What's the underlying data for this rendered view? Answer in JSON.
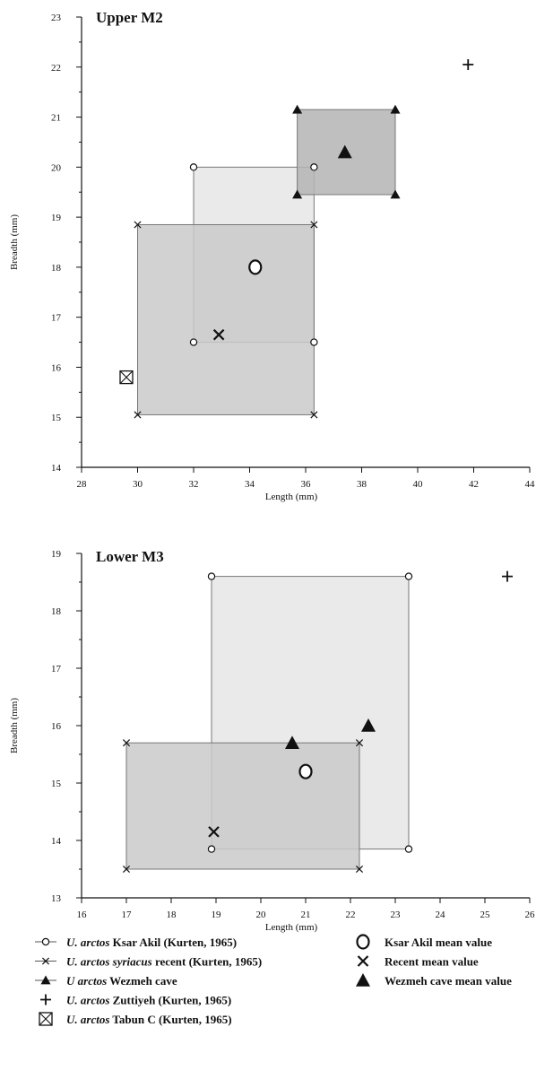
{
  "chart_data": [
    {
      "type": "scatter",
      "title": "Upper M2",
      "xlabel": "Length (mm)",
      "ylabel": "Breadth (mm)",
      "xlim": [
        28,
        44
      ],
      "ylim": [
        14,
        23
      ],
      "xticks": [
        "28",
        "30",
        "32",
        "34",
        "36",
        "38",
        "40",
        "42",
        "44"
      ],
      "yticks": [
        "14",
        "15",
        "16",
        "17",
        "18",
        "19",
        "20",
        "21",
        "22",
        "23"
      ],
      "ranges": [
        {
          "series": "ksar",
          "x": [
            32.0,
            36.3
          ],
          "y": [
            16.5,
            20.0
          ],
          "fill": "#e6e6e6"
        },
        {
          "series": "recent",
          "x": [
            30.0,
            36.3
          ],
          "y": [
            15.05,
            18.85
          ],
          "fill": "#cacaca"
        },
        {
          "series": "wezmeh",
          "x": [
            35.7,
            39.2
          ],
          "y": [
            19.45,
            21.15
          ],
          "fill": "#b4b4b4"
        }
      ],
      "points": [
        {
          "series": "ksar_mean",
          "x": 34.2,
          "y": 18.0
        },
        {
          "series": "recent_mean",
          "x": 32.9,
          "y": 16.65
        },
        {
          "series": "wezmeh_mean",
          "x": 37.4,
          "y": 20.3
        },
        {
          "series": "zuttiyeh",
          "x": 41.8,
          "y": 22.05
        },
        {
          "series": "tabun",
          "x": 29.6,
          "y": 15.8
        }
      ]
    },
    {
      "type": "scatter",
      "title": "Lower M3",
      "xlabel": "Length (mm)",
      "ylabel": "Breadth (mm)",
      "xlim": [
        16,
        26
      ],
      "ylim": [
        13,
        19
      ],
      "xticks": [
        "16",
        "17",
        "18",
        "19",
        "20",
        "21",
        "22",
        "23",
        "24",
        "25",
        "26"
      ],
      "yticks": [
        "13",
        "14",
        "15",
        "16",
        "17",
        "18",
        "19"
      ],
      "ranges": [
        {
          "series": "ksar",
          "x": [
            18.9,
            23.3
          ],
          "y": [
            13.85,
            18.6
          ],
          "fill": "#e6e6e6"
        },
        {
          "series": "recent",
          "x": [
            17.0,
            22.2
          ],
          "y": [
            13.5,
            15.7
          ],
          "fill": "#cacaca"
        }
      ],
      "points": [
        {
          "series": "ksar_mean",
          "x": 21.0,
          "y": 15.2
        },
        {
          "series": "recent_mean",
          "x": 18.95,
          "y": 14.15
        },
        {
          "series": "wezmeh_mean",
          "x": 20.7,
          "y": 15.7
        },
        {
          "series": "wezmeh_mean",
          "x": 22.4,
          "y": 16.0
        },
        {
          "series": "zuttiyeh",
          "x": 25.5,
          "y": 18.6
        }
      ]
    }
  ],
  "legend": {
    "left": [
      {
        "symbol": "ksar",
        "species": "U. arctos",
        "text": " Ksar Akil (Kurten, 1965)"
      },
      {
        "symbol": "recent",
        "species": "U. arctos syriacus",
        "text": " recent (Kurten, 1965)"
      },
      {
        "symbol": "wezmeh",
        "species": "U arctos",
        "text": " Wezmeh cave"
      },
      {
        "symbol": "zuttiyeh",
        "species": "U. arctos",
        "text": " Zuttiyeh (Kurten, 1965)"
      },
      {
        "symbol": "tabun",
        "species": "U. arctos",
        "text": " Tabun C (Kurten, 1965)"
      }
    ],
    "right": [
      {
        "symbol": "ksar_mean",
        "text": "Ksar Akil mean value"
      },
      {
        "symbol": "recent_mean",
        "text": "Recent mean value"
      },
      {
        "symbol": "wezmeh_mean",
        "text": "Wezmeh cave mean value"
      }
    ]
  }
}
